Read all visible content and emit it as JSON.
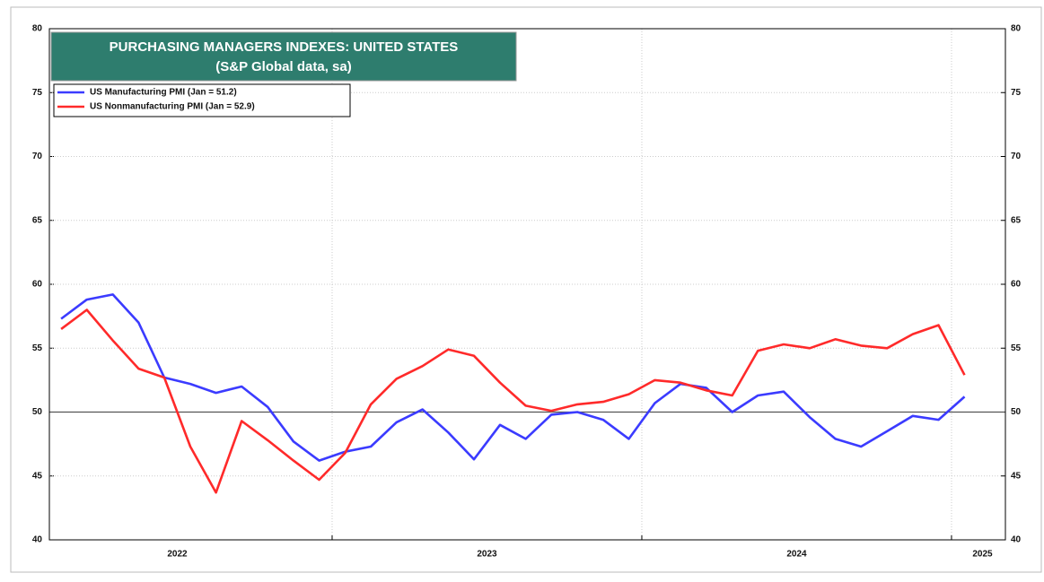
{
  "chart_data": {
    "type": "line",
    "title": "PURCHASING MANAGERS INDEXES: UNITED STATES",
    "subtitle": "(S&P Global data, sa)",
    "x": [
      2022.125,
      2022.208,
      2022.292,
      2022.375,
      2022.458,
      2022.542,
      2022.625,
      2022.708,
      2022.792,
      2022.875,
      2022.958,
      2023.042,
      2023.125,
      2023.208,
      2023.292,
      2023.375,
      2023.458,
      2023.542,
      2023.625,
      2023.708,
      2023.792,
      2023.875,
      2023.958,
      2024.042,
      2024.125,
      2024.208,
      2024.292,
      2024.375,
      2024.458,
      2024.542,
      2024.625,
      2024.708,
      2024.792,
      2024.875,
      2024.958,
      2025.042
    ],
    "series": [
      {
        "name": "US Manufacturing PMI (Jan = 51.2)",
        "color": "#3b3bff",
        "values": [
          57.3,
          58.8,
          59.2,
          57.0,
          52.7,
          52.2,
          51.5,
          52.0,
          50.4,
          47.7,
          46.2,
          46.9,
          47.3,
          49.2,
          50.2,
          48.4,
          46.3,
          49.0,
          47.9,
          49.8,
          50.0,
          49.4,
          47.9,
          50.7,
          52.2,
          51.9,
          50.0,
          51.3,
          51.6,
          49.6,
          47.9,
          47.3,
          48.5,
          49.7,
          49.4,
          51.2
        ]
      },
      {
        "name": "US Nonmanufacturing PMI (Jan = 52.9)",
        "color": "#ff2a2a",
        "values": [
          56.5,
          58.0,
          55.6,
          53.4,
          52.7,
          47.3,
          43.7,
          49.3,
          47.8,
          46.2,
          44.7,
          46.8,
          50.6,
          52.6,
          53.6,
          54.9,
          54.4,
          52.3,
          50.5,
          50.1,
          50.6,
          50.8,
          51.4,
          52.5,
          52.3,
          51.7,
          51.3,
          54.8,
          55.3,
          55.0,
          55.7,
          55.2,
          55.0,
          56.1,
          56.8,
          52.9
        ]
      }
    ],
    "xlim": [
      2022.087,
      2025.174
    ],
    "xticks": [
      {
        "value": 2022.5,
        "label": "2022"
      },
      {
        "value": 2023.5,
        "label": "2023"
      },
      {
        "value": 2024.5,
        "label": "2024"
      },
      {
        "value": 2025.1,
        "label": "2025"
      }
    ],
    "xgrid": [
      2023,
      2024,
      2025
    ],
    "ylim": [
      40,
      80
    ],
    "yticks": [
      40,
      45,
      50,
      55,
      60,
      65,
      70,
      75,
      80
    ],
    "y2lim": [
      40,
      80
    ],
    "y2ticks": [
      40,
      45,
      50,
      55,
      60,
      65,
      70,
      75,
      80
    ],
    "hline": 50,
    "grid": true,
    "legend": "upper left"
  }
}
